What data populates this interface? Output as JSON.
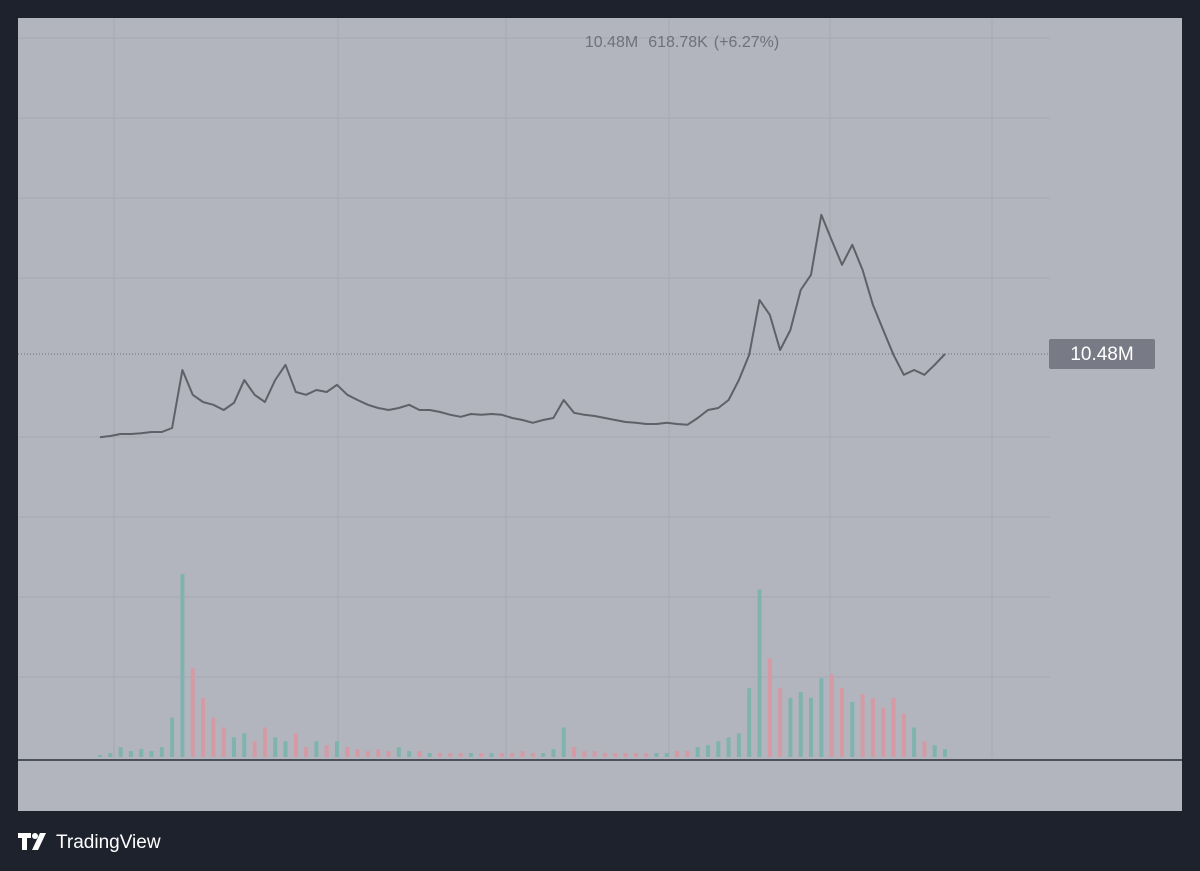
{
  "header": {
    "last": "10.48M",
    "change": "618.78K",
    "change_pct": "(+6.27%)"
  },
  "chart_data": {
    "type": "line",
    "color": "#5f6068",
    "values": [
      8.4,
      8.43,
      8.48,
      8.48,
      8.5,
      8.53,
      8.53,
      8.63,
      10.08,
      9.46,
      9.28,
      9.21,
      9.08,
      9.26,
      9.83,
      9.46,
      9.28,
      9.83,
      10.21,
      9.53,
      9.46,
      9.58,
      9.53,
      9.71,
      9.46,
      9.33,
      9.21,
      9.13,
      9.08,
      9.13,
      9.21,
      9.08,
      9.08,
      9.03,
      8.96,
      8.91,
      8.98,
      8.96,
      8.98,
      8.96,
      8.88,
      8.83,
      8.76,
      8.83,
      8.88,
      9.33,
      9.01,
      8.96,
      8.93,
      8.88,
      8.83,
      8.78,
      8.76,
      8.73,
      8.73,
      8.76,
      8.73,
      8.71,
      8.88,
      9.08,
      9.13,
      9.33,
      9.83,
      10.46,
      11.83,
      11.46,
      10.58,
      11.08,
      12.08,
      12.46,
      13.96,
      13.33,
      12.71,
      13.21,
      12.58,
      11.71,
      11.08,
      10.46,
      9.96,
      10.08,
      9.96,
      10.21,
      10.48
    ],
    "ylim": [
      6.33,
      18.88
    ],
    "last_value": 10.48,
    "price_label": "10.48M",
    "volume": {
      "values": [
        1,
        2,
        5,
        3,
        4,
        3,
        5,
        20,
        93,
        45,
        30,
        20,
        15,
        10,
        12,
        8,
        15,
        10,
        8,
        12,
        5,
        8,
        6,
        8,
        5,
        4,
        3,
        4,
        3,
        5,
        3,
        3,
        2,
        2,
        2,
        2,
        2,
        2,
        2,
        2,
        2,
        3,
        2,
        2,
        4,
        15,
        5,
        3,
        3,
        2,
        2,
        2,
        2,
        2,
        2,
        2,
        3,
        3,
        5,
        6,
        8,
        10,
        12,
        35,
        85,
        50,
        35,
        30,
        33,
        30,
        40,
        42,
        35,
        28,
        32,
        30,
        25,
        30,
        22,
        15,
        8,
        6,
        4
      ],
      "ylim": [
        0,
        100
      ],
      "up_color": "#7fb3ae",
      "down_color": "#d59aa3"
    }
  },
  "footer": {
    "brand": "TradingView"
  }
}
